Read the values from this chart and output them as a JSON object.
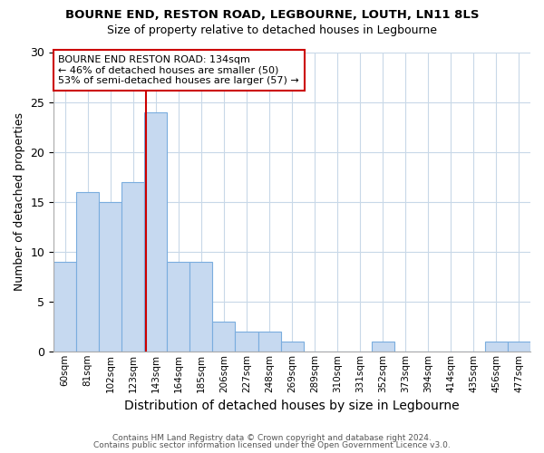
{
  "title": "BOURNE END, RESTON ROAD, LEGBOURNE, LOUTH, LN11 8LS",
  "subtitle": "Size of property relative to detached houses in Legbourne",
  "xlabel": "Distribution of detached houses by size in Legbourne",
  "ylabel": "Number of detached properties",
  "categories": [
    "60sqm",
    "81sqm",
    "102sqm",
    "123sqm",
    "143sqm",
    "164sqm",
    "185sqm",
    "206sqm",
    "227sqm",
    "248sqm",
    "269sqm",
    "289sqm",
    "310sqm",
    "331sqm",
    "352sqm",
    "373sqm",
    "394sqm",
    "414sqm",
    "435sqm",
    "456sqm",
    "477sqm"
  ],
  "values": [
    9,
    16,
    15,
    17,
    24,
    9,
    9,
    3,
    2,
    2,
    1,
    0,
    0,
    0,
    1,
    0,
    0,
    0,
    0,
    1,
    1
  ],
  "bar_color": "#c6d9f0",
  "bar_edge_color": "#7aadde",
  "vline_color": "#cc0000",
  "annotation_title": "BOURNE END RESTON ROAD: 134sqm",
  "annotation_line1": "← 46% of detached houses are smaller (50)",
  "annotation_line2": "53% of semi-detached houses are larger (57) →",
  "annotation_box_edge": "#cc0000",
  "ylim": [
    0,
    30
  ],
  "yticks": [
    0,
    5,
    10,
    15,
    20,
    25,
    30
  ],
  "footer1": "Contains HM Land Registry data © Crown copyright and database right 2024.",
  "footer2": "Contains public sector information licensed under the Open Government Licence v3.0.",
  "bg_color": "#ffffff",
  "grid_color": "#c8d8e8"
}
